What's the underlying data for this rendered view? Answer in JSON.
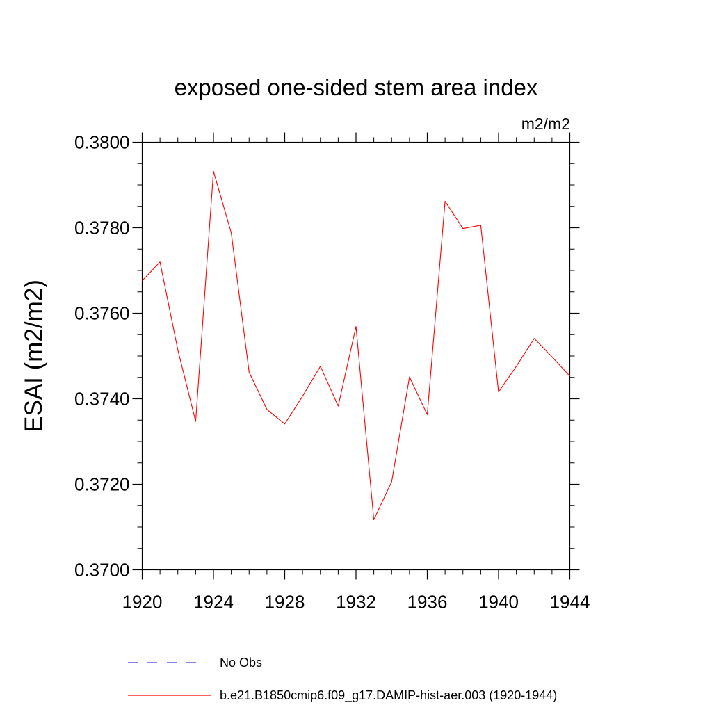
{
  "chart_data": {
    "type": "line",
    "title": "exposed one-sided stem area index",
    "units_label": "m2/m2",
    "ylabel": "ESAI  (m2/m2)",
    "xlabel": "",
    "xlim": [
      1920,
      1944
    ],
    "ylim": [
      0.37,
      0.38
    ],
    "x_ticks": [
      1920,
      1924,
      1928,
      1932,
      1936,
      1940,
      1944
    ],
    "y_ticks": [
      "0.3700",
      "0.3720",
      "0.3740",
      "0.3760",
      "0.3780",
      "0.3800"
    ],
    "y_tick_values": [
      0.37,
      0.372,
      0.374,
      0.376,
      0.378,
      0.38
    ],
    "grid": false,
    "legend_position": "bottom",
    "series": [
      {
        "name": "b.e21.B1850cmip6.f09_g17.DAMIP-hist-aer.003 (1920-1944)",
        "color": "#ff0000",
        "style": "solid",
        "x": [
          1920,
          1921,
          1922,
          1923,
          1924,
          1925,
          1926,
          1927,
          1928,
          1929,
          1930,
          1931,
          1932,
          1933,
          1934,
          1935,
          1936,
          1937,
          1938,
          1939,
          1940,
          1941,
          1942,
          1943,
          1944
        ],
        "values": [
          0.37676,
          0.3772,
          0.37514,
          0.37347,
          0.37932,
          0.37788,
          0.37462,
          0.37375,
          0.37341,
          0.37406,
          0.37476,
          0.37383,
          0.37569,
          0.37117,
          0.37206,
          0.37451,
          0.37363,
          0.37862,
          0.37798,
          0.37806,
          0.37416,
          0.37476,
          0.37541,
          0.37498,
          0.37453
        ]
      },
      {
        "name": "No Obs",
        "color": "#3b3bd6",
        "style": "dashed",
        "x": [],
        "values": []
      }
    ]
  }
}
